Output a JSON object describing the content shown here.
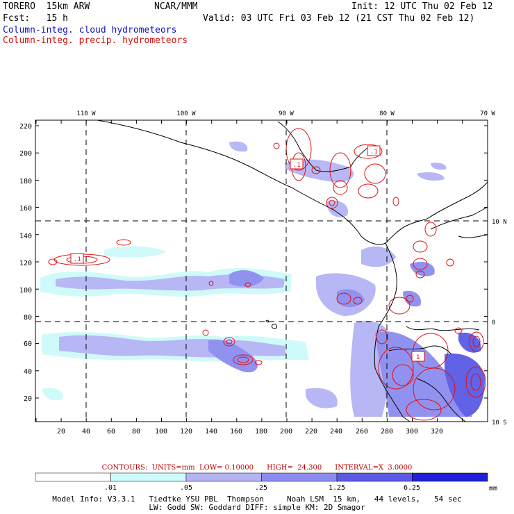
{
  "header": {
    "model": "TORERO  15km ARW",
    "org": "NCAR/MMM",
    "init": "Init: 12 UTC Thu 02 Feb 12",
    "fcst": "Fcst:   15 h",
    "valid": "Valid: 03 UTC Fri 03 Feb 12 (21 CST Thu 02 Feb 12)",
    "line_blue": "Column-integ. cloud hydrometeors",
    "line_red": "Column-integ. precip. hydrometeors"
  },
  "map": {
    "top_lon_labels": [
      "110 W",
      "100 W",
      "90 W",
      "80 W",
      "70 W"
    ],
    "right_lat_labels": [
      "10 N",
      "0",
      "10 S"
    ],
    "y_ticks": [
      "220",
      "200",
      "180",
      "160",
      "140",
      "120",
      "100",
      "80",
      "60",
      "40",
      "20"
    ],
    "x_ticks": [
      "20",
      "40",
      "60",
      "80",
      "100",
      "120",
      "140",
      "160",
      "180",
      "200",
      "220",
      "240",
      "260",
      "280",
      "300",
      "320"
    ],
    "contour_labels": [
      ".1",
      ".1",
      "1",
      ".1"
    ]
  },
  "contours_text": "CONTOURS:  UNITS=mm  LOW= 0.10000      HIGH=  24.300      INTERVAL=X  3.0000",
  "color_scale": {
    "labels": [
      ".01",
      ".05",
      ".25",
      "1.25",
      "6.25"
    ],
    "unit": "mm",
    "colors": [
      "#ffffff",
      "#cdfafa",
      "#b4b4f5",
      "#8c8cf0",
      "#5a5ae6",
      "#2020d8"
    ]
  },
  "info": {
    "line1": "Model Info: V3.3.1   Tiedtke YSU PBL  Thompson     Noah LSM  15 km,   44 levels,   54 sec",
    "line2": "LW: Godd SW: Goddard DIFF: simple KM: 2D Smagor"
  }
}
